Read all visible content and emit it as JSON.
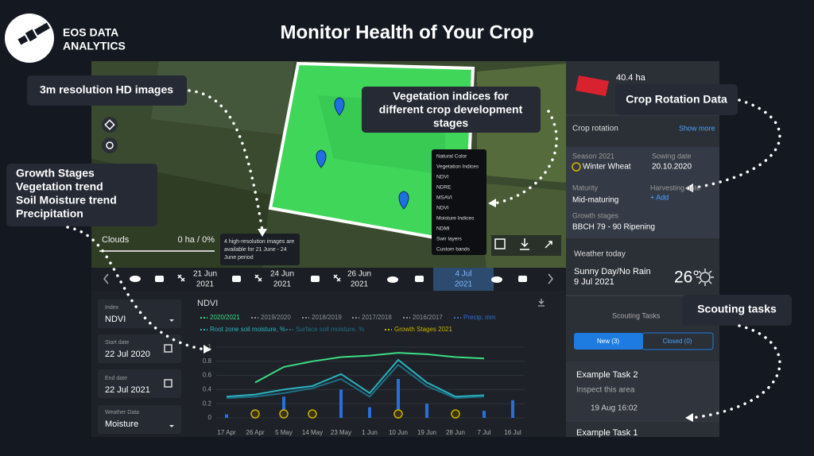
{
  "header": {
    "logo_line1": "EOS DATA",
    "logo_line2": "ANALYTICS",
    "title": "Monitor Health of Your Crop"
  },
  "callouts": {
    "hd_images": "3m resolution HD images",
    "vegetation": [
      "Vegetation indices for",
      "different crop development",
      "stages"
    ],
    "crop_rotation": "Crop Rotation Data",
    "growth": [
      "Growth Stages",
      "Vegetation trend",
      "Soil Moisture trend",
      "Precipitation"
    ],
    "scouting": "Scouting tasks"
  },
  "map": {
    "clouds_label": "Clouds",
    "clouds_value": "0 ha / 0%",
    "tooltip": [
      "4 high-resolution images are",
      "available for 21 June - 24",
      "June period"
    ],
    "index_menu": [
      "Natural Color",
      "Vegetation Indices",
      "NDVI",
      "NDRE",
      "MSAVI",
      "NDVI",
      "Moisture Indices",
      "NDMI",
      "Swir layers",
      "Custom bands"
    ]
  },
  "timeline": [
    {
      "day": "21 Jun",
      "year": "2021"
    },
    {
      "day": "24 Jun",
      "year": "2021"
    },
    {
      "day": "26 Jun",
      "year": "2021"
    },
    {
      "day": "4 Jul",
      "year": "2021"
    }
  ],
  "filters": {
    "index_label": "Index",
    "index_value": "NDVI",
    "start_label": "Start date",
    "start_value": "22 Jul 2020",
    "end_label": "End date",
    "end_value": "22 Jul 2021",
    "weather_label": "Weather Data",
    "weather_value": "Moisture"
  },
  "sidebar": {
    "area": "40.4 ha",
    "crop_rotation": "Crop rotation",
    "show_more": "Show more",
    "season": "Season 2021",
    "crop": "Winter Wheat",
    "sowing_label": "Sowing date",
    "sowing_value": "20.10.2020",
    "maturity_label": "Maturity",
    "maturity_value": "Mid-maturing",
    "harvest_label": "Harvesting date",
    "harvest_value": "+ Add",
    "growth_label": "Growth stages",
    "growth_value": "BBCH 79 - 90 Ripening",
    "weather_title": "Weather today",
    "weather_desc": "Sunny Day/No Rain",
    "weather_date": "9 Jul 2021",
    "temperature": "26°",
    "scouting_title": "Scouting Tasks",
    "tab_new": "New (3)",
    "tab_closed": "Closed (0)",
    "task2_title": "Example Task 2",
    "task2_desc": "Inspect this area",
    "task2_date": "19 Aug 16:02",
    "task1_title": "Example Task 1"
  },
  "chart_data": {
    "type": "line",
    "title": "NDVI",
    "categories": [
      "17 Apr",
      "26 Apr",
      "5 May",
      "14 May",
      "23 May",
      "1 Jun",
      "10 Jun",
      "19 Jun",
      "28 Jun",
      "7 Jul",
      "16 Jul"
    ],
    "ylim": [
      0,
      1
    ],
    "yticks": [
      0,
      0.2,
      0.4,
      0.6,
      0.8,
      1
    ],
    "inactive_series": [
      {
        "name": "2019/2020",
        "color": "#8a8f98"
      },
      {
        "name": "2018/2019",
        "color": "#8a8f98"
      },
      {
        "name": "2017/2018",
        "color": "#8a8f98"
      },
      {
        "name": "2016/2017",
        "color": "#8a8f98"
      }
    ],
    "series": [
      {
        "name": "2020/2021",
        "kind": "line",
        "color": "#3ddc84",
        "values": [
          null,
          0.5,
          0.72,
          0.8,
          0.86,
          0.88,
          0.92,
          0.9,
          0.86,
          0.84,
          null
        ]
      },
      {
        "name": "Precip, mm",
        "kind": "bar",
        "color": "#2a6fd6",
        "values": [
          0.05,
          0.12,
          0.3,
          0.1,
          0.4,
          0.15,
          0.55,
          0.2,
          0.08,
          0.1,
          0.25
        ]
      },
      {
        "name": "Root zone soil moisture, %",
        "kind": "line",
        "color": "#2bb3c0",
        "values": [
          0.3,
          0.33,
          0.4,
          0.45,
          0.62,
          0.35,
          0.82,
          0.5,
          0.3,
          0.32,
          null
        ]
      },
      {
        "name": "Surface soil moisture, %",
        "kind": "line",
        "color": "#1f6f86",
        "values": [
          0.28,
          0.3,
          0.35,
          0.42,
          0.55,
          0.3,
          0.75,
          0.45,
          0.28,
          0.3,
          null
        ]
      },
      {
        "name": "Growth Stages 2021",
        "kind": "marker",
        "color": "#c9b000",
        "values": [
          null,
          0,
          0,
          0,
          null,
          null,
          0,
          null,
          0,
          null,
          null
        ]
      }
    ]
  }
}
